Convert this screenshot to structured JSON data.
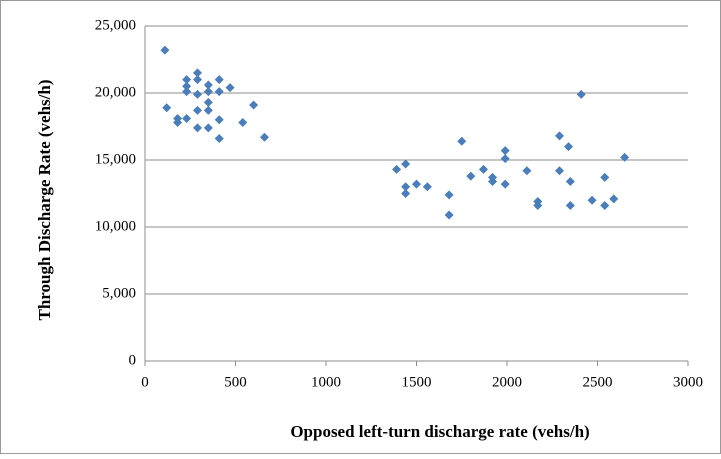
{
  "chart_data": {
    "type": "scatter",
    "xlabel": "Opposed left-turn discharge rate (vehs/h)",
    "ylabel": "Through Discharge Rate (vehs/h)",
    "color": "#4a7ebb",
    "grid": true,
    "xlim": [
      0,
      3000
    ],
    "xticks": [
      0,
      500,
      1000,
      1500,
      2000,
      2500,
      3000
    ],
    "ylim": [
      0,
      25000
    ],
    "yticks": [
      0,
      {
        "value": 5000,
        "label": "5,000"
      },
      {
        "value": 10000,
        "label": "10,000"
      },
      {
        "value": 15000,
        "label": "15,000"
      },
      {
        "value": 20000,
        "label": "20,000"
      },
      {
        "value": 25000,
        "label": "25,000"
      }
    ],
    "x": [
      110,
      120,
      180,
      180,
      230,
      230,
      230,
      230,
      290,
      290,
      290,
      290,
      290,
      350,
      350,
      350,
      350,
      350,
      410,
      410,
      410,
      410,
      470,
      540,
      600,
      660,
      1390,
      1440,
      1440,
      1440,
      1500,
      1560,
      1680,
      1680,
      1750,
      1800,
      1870,
      1920,
      1920,
      1990,
      1990,
      1990,
      2110,
      2170,
      2170,
      2290,
      2290,
      2340,
      2350,
      2350,
      2410,
      2470,
      2540,
      2540,
      2590,
      2650
    ],
    "values": [
      23200,
      18900,
      18100,
      17800,
      21000,
      20500,
      20100,
      18100,
      21500,
      21000,
      19900,
      18700,
      17400,
      20600,
      20100,
      19300,
      18700,
      17400,
      21000,
      20100,
      18000,
      16600,
      20400,
      17800,
      19100,
      16700,
      14300,
      14700,
      13000,
      12500,
      13200,
      13000,
      12400,
      10900,
      16400,
      13800,
      14300,
      13700,
      13400,
      15700,
      15100,
      13200,
      14200,
      11900,
      11600,
      16800,
      14200,
      16000,
      13400,
      11600,
      19900,
      12000,
      13700,
      11600,
      12100,
      15200
    ]
  }
}
